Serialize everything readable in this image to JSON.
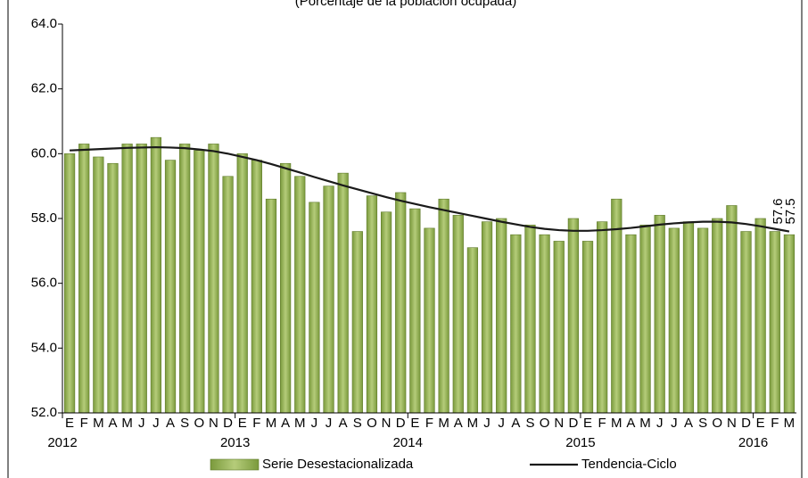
{
  "chart_data": {
    "type": "bar_line",
    "subtitle": "(Porcentaje de la población ocupada)",
    "categories": [
      "E",
      "F",
      "M",
      "A",
      "M",
      "J",
      "J",
      "A",
      "S",
      "O",
      "N",
      "D",
      "E",
      "F",
      "M",
      "A",
      "M",
      "J",
      "J",
      "A",
      "S",
      "O",
      "N",
      "D",
      "E",
      "F",
      "M",
      "A",
      "M",
      "J",
      "J",
      "A",
      "S",
      "O",
      "N",
      "D",
      "E",
      "F",
      "M",
      "A",
      "M",
      "J",
      "J",
      "A",
      "S",
      "O",
      "N",
      "D",
      "E",
      "F",
      "M"
    ],
    "x_groups": [
      "2012",
      "2013",
      "2014",
      "2015",
      "2016"
    ],
    "series": [
      {
        "name": "Serie Desestacionalizada",
        "kind": "bar",
        "color": "#8aa84b",
        "show_last_label": true,
        "values": [
          60.0,
          60.3,
          59.9,
          59.7,
          60.3,
          60.3,
          60.5,
          59.8,
          60.3,
          60.1,
          60.3,
          59.3,
          60.0,
          59.8,
          58.6,
          59.7,
          59.3,
          58.5,
          59.0,
          59.4,
          57.6,
          58.7,
          58.2,
          58.8,
          58.3,
          57.7,
          58.6,
          58.1,
          57.1,
          57.9,
          58.0,
          57.5,
          57.8,
          57.5,
          57.3,
          58.0,
          57.3,
          57.9,
          58.6,
          57.5,
          57.8,
          58.1,
          57.7,
          57.9,
          57.7,
          58.0,
          58.4,
          57.6,
          58.0,
          57.6,
          57.5
        ]
      },
      {
        "name": "Tendencia-Ciclo",
        "kind": "line",
        "color": "#1a1a1a",
        "show_last_label": true,
        "values": [
          60.1,
          60.12,
          60.14,
          60.16,
          60.18,
          60.19,
          60.2,
          60.19,
          60.17,
          60.13,
          60.08,
          60.0,
          59.9,
          59.8,
          59.68,
          59.55,
          59.42,
          59.28,
          59.15,
          59.02,
          58.9,
          58.78,
          58.66,
          58.55,
          58.45,
          58.35,
          58.26,
          58.17,
          58.08,
          57.99,
          57.9,
          57.82,
          57.74,
          57.68,
          57.64,
          57.62,
          57.62,
          57.64,
          57.67,
          57.71,
          57.76,
          57.81,
          57.85,
          57.88,
          57.9,
          57.9,
          57.88,
          57.83,
          57.76,
          57.68,
          57.6
        ]
      }
    ],
    "ylim": [
      52,
      64
    ],
    "yticks": [
      {
        "value": 52,
        "label": "52.0"
      },
      {
        "value": 54,
        "label": "54.0"
      },
      {
        "value": 56,
        "label": "56.0"
      },
      {
        "value": 58,
        "label": "58.0"
      },
      {
        "value": 60,
        "label": "60.0"
      },
      {
        "value": 62,
        "label": "62.0"
      },
      {
        "value": 64,
        "label": "64.0"
      }
    ],
    "grid": false
  }
}
